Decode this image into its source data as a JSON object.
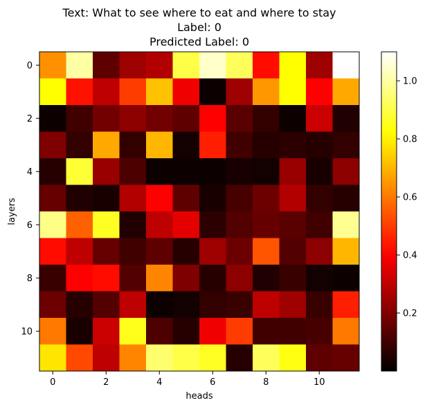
{
  "chart_data": {
    "type": "heatmap",
    "title_lines": [
      "Text: What to see where to eat and where to stay",
      "Label: 0",
      "Predicted Label: 0"
    ],
    "xlabel": "heads",
    "ylabel": "layers",
    "colormap": "hot",
    "vmin": 0.0,
    "vmax": 1.1,
    "x_ticks": [
      0,
      2,
      4,
      6,
      8,
      10
    ],
    "y_ticks": [
      0,
      2,
      4,
      6,
      8,
      10
    ],
    "colorbar_ticks": [
      "0.2",
      "0.4",
      "0.6",
      "0.8",
      "1.0"
    ],
    "colorbar_tick_values": [
      0.2,
      0.4,
      0.6,
      0.8,
      1.0
    ],
    "rows": 12,
    "cols": 12,
    "values": [
      [
        0.64,
        1.0,
        0.15,
        0.25,
        0.28,
        0.9,
        1.04,
        0.92,
        0.42,
        0.82,
        0.25,
        1.1
      ],
      [
        0.82,
        0.43,
        0.3,
        0.5,
        0.72,
        0.38,
        0.02,
        0.25,
        0.65,
        0.82,
        0.4,
        0.68
      ],
      [
        0.02,
        0.1,
        0.18,
        0.22,
        0.18,
        0.15,
        0.4,
        0.14,
        0.08,
        0.02,
        0.32,
        0.05
      ],
      [
        0.2,
        0.08,
        0.68,
        0.08,
        0.7,
        0.03,
        0.45,
        0.1,
        0.06,
        0.07,
        0.06,
        0.08
      ],
      [
        0.06,
        0.88,
        0.24,
        0.12,
        0.02,
        0.02,
        0.02,
        0.04,
        0.03,
        0.24,
        0.04,
        0.22
      ],
      [
        0.16,
        0.05,
        0.04,
        0.28,
        0.4,
        0.15,
        0.04,
        0.11,
        0.17,
        0.28,
        0.08,
        0.06
      ],
      [
        0.97,
        0.56,
        0.86,
        0.05,
        0.3,
        0.36,
        0.07,
        0.13,
        0.16,
        0.14,
        0.1,
        0.98
      ],
      [
        0.42,
        0.3,
        0.16,
        0.1,
        0.15,
        0.06,
        0.25,
        0.17,
        0.54,
        0.13,
        0.22,
        0.7
      ],
      [
        0.09,
        0.4,
        0.42,
        0.13,
        0.62,
        0.2,
        0.06,
        0.22,
        0.05,
        0.09,
        0.03,
        0.02
      ],
      [
        0.17,
        0.06,
        0.13,
        0.3,
        0.02,
        0.03,
        0.08,
        0.09,
        0.3,
        0.25,
        0.09,
        0.45
      ],
      [
        0.6,
        0.04,
        0.32,
        0.85,
        0.12,
        0.06,
        0.38,
        0.5,
        0.1,
        0.1,
        0.11,
        0.6
      ],
      [
        0.78,
        0.52,
        0.3,
        0.62,
        0.94,
        0.9,
        0.86,
        0.06,
        0.92,
        0.84,
        0.15,
        0.16
      ]
    ]
  }
}
